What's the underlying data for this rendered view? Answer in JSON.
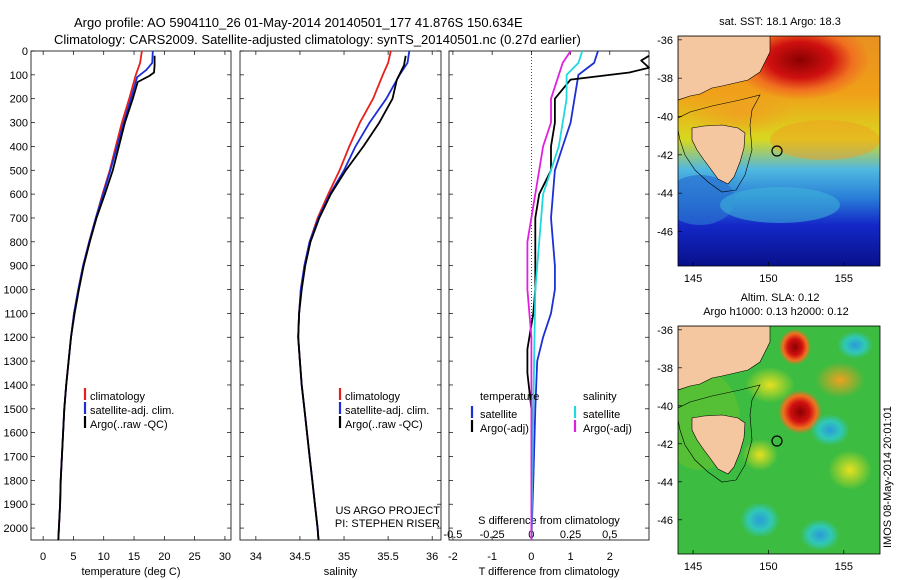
{
  "header": {
    "title_line1": "Argo profile: AO 5904110_26 01-May-2014 20140501_177 41.876S 150.634E",
    "title_line2": "Climatology: CARS2009. Satellite-adjusted climatology: synTS_20140501.nc (0.27d earlier)"
  },
  "depth_ticks": [
    "0",
    "100",
    "200",
    "300",
    "400",
    "500",
    "600",
    "700",
    "800",
    "900",
    "1000",
    "1100",
    "1200",
    "1300",
    "1400",
    "1500",
    "1600",
    "1700",
    "1800",
    "1900",
    "2000"
  ],
  "colors": {
    "climatology": "#e8201c",
    "satellite": "#1b2fd6",
    "argo": "#000000",
    "cyan": "#20d8e0",
    "magenta": "#e020e0"
  },
  "chart_data": [
    {
      "type": "line",
      "xlabel": "temperature (deg C)",
      "xticks": [
        "0",
        "5",
        "10",
        "15",
        "20",
        "25",
        "30"
      ],
      "xlim": [
        -2,
        31
      ],
      "ylim": [
        2050,
        0
      ],
      "legend": [
        "climatology",
        "satellite-adj. clim.",
        "Argo(..raw -QC)"
      ],
      "legend_position": "lower-middle",
      "series": [
        {
          "name": "climatology",
          "color": "red",
          "points": [
            [
              16.3,
              0
            ],
            [
              16.0,
              50
            ],
            [
              15.3,
              100
            ],
            [
              14.2,
              200
            ],
            [
              13.0,
              300
            ],
            [
              12.0,
              400
            ],
            [
              11.0,
              500
            ],
            [
              9.8,
              600
            ],
            [
              8.7,
              700
            ],
            [
              7.6,
              800
            ],
            [
              6.6,
              900
            ],
            [
              5.8,
              1000
            ],
            [
              5.1,
              1100
            ],
            [
              4.6,
              1200
            ],
            [
              4.2,
              1300
            ],
            [
              3.8,
              1400
            ],
            [
              3.5,
              1500
            ],
            [
              3.3,
              1600
            ],
            [
              3.1,
              1700
            ],
            [
              2.9,
              1800
            ],
            [
              2.8,
              1900
            ],
            [
              2.6,
              2000
            ],
            [
              2.5,
              2050
            ]
          ]
        },
        {
          "name": "satellite-adj. clim.",
          "color": "blue",
          "points": [
            [
              18.1,
              0
            ],
            [
              18.0,
              50
            ],
            [
              17.0,
              80
            ],
            [
              15.5,
              110
            ],
            [
              14.5,
              200
            ],
            [
              13.3,
              300
            ],
            [
              12.2,
              400
            ],
            [
              11.1,
              500
            ],
            [
              9.9,
              600
            ],
            [
              8.7,
              700
            ],
            [
              7.6,
              800
            ],
            [
              6.6,
              900
            ],
            [
              5.8,
              1000
            ],
            [
              5.1,
              1100
            ],
            [
              4.6,
              1200
            ],
            [
              4.2,
              1300
            ],
            [
              3.8,
              1400
            ],
            [
              3.5,
              1500
            ],
            [
              3.3,
              1600
            ],
            [
              3.1,
              1700
            ],
            [
              2.9,
              1800
            ],
            [
              2.8,
              1900
            ],
            [
              2.6,
              2000
            ],
            [
              2.5,
              2050
            ]
          ]
        },
        {
          "name": "Argo(..raw -QC)",
          "color": "black",
          "points": [
            [
              18.4,
              20
            ],
            [
              18.4,
              60
            ],
            [
              18.3,
              90
            ],
            [
              17.5,
              105
            ],
            [
              15.6,
              130
            ],
            [
              14.8,
              200
            ],
            [
              13.5,
              300
            ],
            [
              12.5,
              400
            ],
            [
              11.5,
              500
            ],
            [
              10.2,
              600
            ],
            [
              8.8,
              700
            ],
            [
              7.7,
              800
            ],
            [
              6.7,
              900
            ],
            [
              5.9,
              1000
            ],
            [
              5.2,
              1100
            ],
            [
              4.6,
              1200
            ],
            [
              4.2,
              1300
            ],
            [
              3.8,
              1400
            ],
            [
              3.5,
              1500
            ],
            [
              3.3,
              1600
            ],
            [
              3.1,
              1700
            ],
            [
              2.9,
              1800
            ],
            [
              2.8,
              1900
            ],
            [
              2.6,
              2000
            ],
            [
              2.5,
              2050
            ]
          ]
        }
      ]
    },
    {
      "type": "line",
      "xlabel": "salinity",
      "xticks": [
        "34",
        "34.5",
        "35",
        "35.5",
        "36"
      ],
      "xlim": [
        33.82,
        36.1
      ],
      "ylim": [
        2050,
        0
      ],
      "legend": [
        "climatology",
        "satellite-adj. clim.",
        "Argo(..raw -QC)"
      ],
      "legend_position": "lower-right",
      "annotations": [
        "US ARGO PROJECT",
        "PI: STEPHEN RISER"
      ],
      "series": [
        {
          "name": "climatology",
          "color": "red",
          "points": [
            [
              35.53,
              0
            ],
            [
              35.5,
              50
            ],
            [
              35.44,
              100
            ],
            [
              35.33,
              200
            ],
            [
              35.18,
              300
            ],
            [
              35.06,
              400
            ],
            [
              34.95,
              500
            ],
            [
              34.82,
              600
            ],
            [
              34.7,
              700
            ],
            [
              34.61,
              800
            ],
            [
              34.55,
              900
            ],
            [
              34.51,
              1000
            ],
            [
              34.49,
              1100
            ],
            [
              34.48,
              1200
            ],
            [
              34.5,
              1300
            ],
            [
              34.52,
              1400
            ],
            [
              34.55,
              1500
            ],
            [
              34.58,
              1600
            ],
            [
              34.61,
              1700
            ],
            [
              34.64,
              1800
            ],
            [
              34.67,
              1900
            ],
            [
              34.7,
              2000
            ],
            [
              34.71,
              2050
            ]
          ]
        },
        {
          "name": "satellite-adj. clim.",
          "color": "blue",
          "points": [
            [
              35.74,
              0
            ],
            [
              35.72,
              50
            ],
            [
              35.63,
              100
            ],
            [
              35.48,
              200
            ],
            [
              35.29,
              300
            ],
            [
              35.13,
              400
            ],
            [
              35.0,
              500
            ],
            [
              34.84,
              600
            ],
            [
              34.71,
              700
            ],
            [
              34.61,
              800
            ],
            [
              34.55,
              900
            ],
            [
              34.51,
              1000
            ],
            [
              34.49,
              1100
            ],
            [
              34.48,
              1200
            ],
            [
              34.5,
              1300
            ],
            [
              34.52,
              1400
            ],
            [
              34.55,
              1500
            ],
            [
              34.58,
              1600
            ],
            [
              34.61,
              1700
            ],
            [
              34.64,
              1800
            ],
            [
              34.67,
              1900
            ],
            [
              34.7,
              2000
            ],
            [
              34.71,
              2050
            ]
          ]
        },
        {
          "name": "Argo(..raw -QC)",
          "color": "black",
          "points": [
            [
              35.7,
              20
            ],
            [
              35.68,
              60
            ],
            [
              35.6,
              120
            ],
            [
              35.55,
              200
            ],
            [
              35.4,
              300
            ],
            [
              35.22,
              400
            ],
            [
              35.02,
              500
            ],
            [
              34.85,
              600
            ],
            [
              34.72,
              700
            ],
            [
              34.62,
              800
            ],
            [
              34.56,
              900
            ],
            [
              34.52,
              1000
            ],
            [
              34.49,
              1100
            ],
            [
              34.48,
              1200
            ],
            [
              34.5,
              1300
            ],
            [
              34.52,
              1400
            ],
            [
              34.55,
              1500
            ],
            [
              34.58,
              1600
            ],
            [
              34.61,
              1700
            ],
            [
              34.64,
              1800
            ],
            [
              34.67,
              1900
            ],
            [
              34.7,
              2000
            ],
            [
              34.71,
              2050
            ]
          ]
        }
      ]
    },
    {
      "type": "line",
      "xlabel": "T difference from climatology",
      "xticks": [
        "-2",
        "-1",
        "0",
        "1",
        "2"
      ],
      "xlim": [
        -2.1,
        3.0
      ],
      "secondary_label": "S difference from climatology",
      "secondary_ticks": [
        "-0.5",
        "-0.25",
        "0",
        "0.25",
        "0.5"
      ],
      "ylim": [
        2050,
        0
      ],
      "legend_groups": [
        {
          "title": "temperature",
          "items": [
            "satellite",
            "Argo(-adj)"
          ]
        },
        {
          "title": "salinity",
          "items": [
            "satellite",
            "Argo(-adj)"
          ]
        }
      ],
      "series": [
        {
          "name": "temperature satellite",
          "color": "blue",
          "points": [
            [
              1.7,
              0
            ],
            [
              1.6,
              50
            ],
            [
              1.2,
              100
            ],
            [
              1.1,
              200
            ],
            [
              1.0,
              300
            ],
            [
              0.8,
              400
            ],
            [
              0.6,
              500
            ],
            [
              0.5,
              700
            ],
            [
              0.6,
              900
            ],
            [
              0.6,
              1000
            ],
            [
              0.5,
              1100
            ],
            [
              0.3,
              1200
            ],
            [
              0.15,
              1300
            ],
            [
              0.1,
              1500
            ],
            [
              0.05,
              1800
            ],
            [
              0.0,
              2050
            ]
          ]
        },
        {
          "name": "temperature Argo(-adj)",
          "color": "black",
          "points": [
            [
              3.0,
              20
            ],
            [
              2.8,
              40
            ],
            [
              3.0,
              70
            ],
            [
              2.5,
              90
            ],
            [
              1.0,
              120
            ],
            [
              0.6,
              200
            ],
            [
              0.6,
              300
            ],
            [
              0.5,
              400
            ],
            [
              0.5,
              500
            ],
            [
              0.2,
              600
            ],
            [
              0.1,
              700
            ],
            [
              0.1,
              800
            ],
            [
              0.1,
              900
            ],
            [
              0.1,
              1000
            ],
            [
              0.05,
              1100
            ],
            [
              -0.1,
              1250
            ],
            [
              -0.1,
              1350
            ],
            [
              0.0,
              1500
            ],
            [
              0.0,
              1800
            ],
            [
              0.0,
              2050
            ]
          ]
        },
        {
          "name": "salinity satellite",
          "color": "cyan",
          "points": [
            [
              1.3,
              0
            ],
            [
              1.2,
              50
            ],
            [
              0.9,
              100
            ],
            [
              0.9,
              200
            ],
            [
              0.7,
              400
            ],
            [
              0.3,
              600
            ],
            [
              0.2,
              800
            ],
            [
              0.1,
              1000
            ],
            [
              0.05,
              1500
            ],
            [
              0.0,
              2050
            ]
          ]
        },
        {
          "name": "salinity Argo(-adj)",
          "color": "magenta",
          "points": [
            [
              1.0,
              0
            ],
            [
              0.8,
              50
            ],
            [
              0.7,
              100
            ],
            [
              0.6,
              150
            ],
            [
              0.5,
              200
            ],
            [
              0.5,
              300
            ],
            [
              0.3,
              400
            ],
            [
              0.1,
              600
            ],
            [
              -0.1,
              800
            ],
            [
              -0.1,
              1000
            ],
            [
              0.0,
              1200
            ],
            [
              0.0,
              2050
            ]
          ]
        }
      ]
    },
    {
      "type": "heatmap",
      "title": "sat. SST: 18.1  Argo: 18.3",
      "yticks": [
        "-36",
        "-38",
        "-40",
        "-42",
        "-44",
        "-46"
      ],
      "xticks": [
        "145",
        "150",
        "155"
      ]
    },
    {
      "type": "heatmap",
      "title_line1": "Altim. SLA: 0.12",
      "title_line2": "Argo h1000: 0.13 h2000: 0.12",
      "yticks": [
        "-36",
        "-38",
        "-40",
        "-42",
        "-44",
        "-46"
      ],
      "xticks": [
        "145",
        "150",
        "155"
      ]
    }
  ],
  "watermark": "IMOS 08-May-2014 20:01:01"
}
